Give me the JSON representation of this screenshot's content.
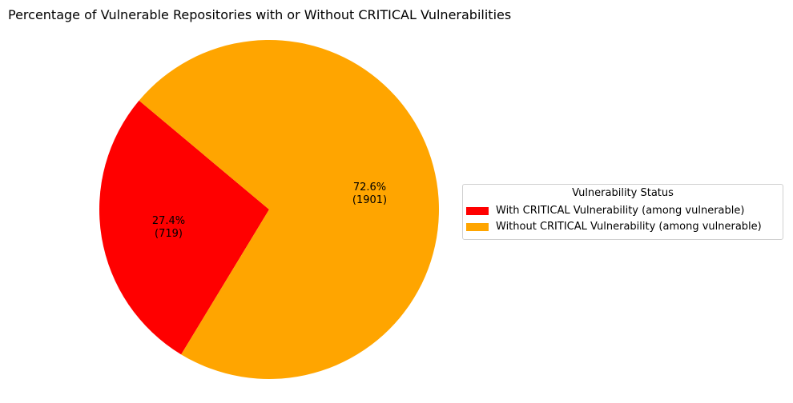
{
  "chart_data": {
    "type": "pie",
    "title": "Percentage of Vulnerable Repositories with or Without CRITICAL Vulnerabilities",
    "slices": [
      {
        "label": "With CRITICAL Vulnerability (among vulnerable)",
        "value": 719,
        "percent": 27.4,
        "percent_text": "27.4%",
        "count_text": "(719)",
        "color": "#ff0000"
      },
      {
        "label": "Without CRITICAL Vulnerability (among vulnerable)",
        "value": 1901,
        "percent": 72.6,
        "percent_text": "72.6%",
        "count_text": "(1901)",
        "color": "#ffa500"
      }
    ],
    "start_angle_deg": 140,
    "legend": {
      "title": "Vulnerability Status",
      "placement": "right"
    }
  }
}
